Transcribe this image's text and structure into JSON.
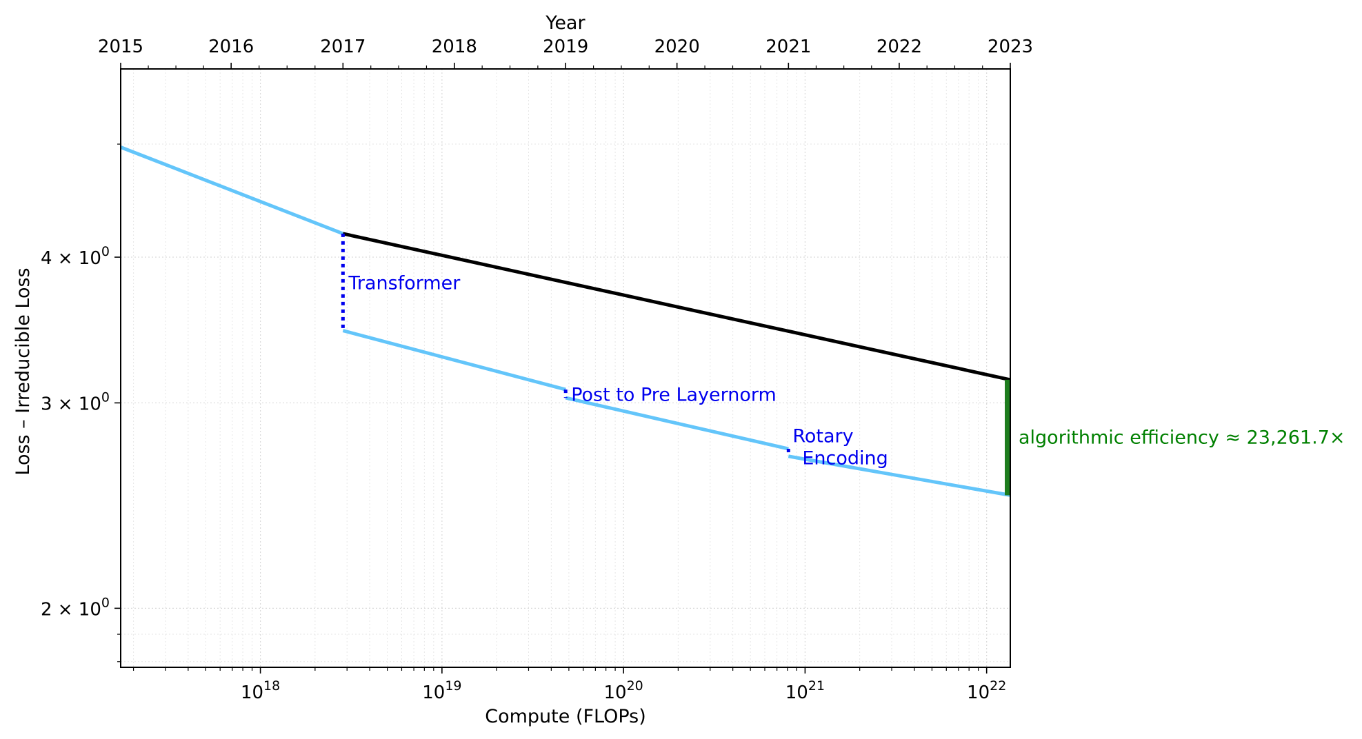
{
  "chart_data": {
    "type": "line",
    "xlabel": "Compute (FLOPs)",
    "ylabel": "Loss – Irreducible Loss",
    "top_axis": {
      "label": "Year",
      "ticks": [
        "2015",
        "2016",
        "2017",
        "2018",
        "2019",
        "2020",
        "2021",
        "2022",
        "2023"
      ],
      "tick_compute": [
        1.7e+17,
        6.9e+17,
        2.85e+18,
        1.17e+19,
        4.8e+19,
        1.97e+20,
        8.1e+20,
        3.3e+21,
        1.35e+22
      ]
    },
    "x_scale": "log",
    "y_scale": "log",
    "xlim": [
      1.7e+17,
      1.35e+22
    ],
    "ylim": [
      1.78,
      5.8
    ],
    "x_ticks": [
      {
        "value": 1e+18,
        "base": "10",
        "exp": "18"
      },
      {
        "value": 1e+19,
        "base": "10",
        "exp": "19"
      },
      {
        "value": 1e+20,
        "base": "10",
        "exp": "20"
      },
      {
        "value": 1e+21,
        "base": "10",
        "exp": "21"
      },
      {
        "value": 1e+22,
        "base": "10",
        "exp": "22"
      }
    ],
    "y_ticks": [
      {
        "value": 2,
        "mant": "2 × 10",
        "exp": "0"
      },
      {
        "value": 3,
        "mant": "3 × 10",
        "exp": "0"
      },
      {
        "value": 4,
        "mant": "4 × 10",
        "exp": "0"
      }
    ],
    "grid": true,
    "series": [
      {
        "color": "#000000",
        "points": [
          [
            2.85e+18,
            4.19
          ],
          [
            1.35e+22,
            3.14
          ]
        ]
      },
      {
        "color": "#63c5fa",
        "points": [
          [
            1.7e+17,
            4.97
          ],
          [
            2.85e+18,
            4.19
          ],
          [
            2.85e+18,
            3.46
          ],
          [
            4.8e+19,
            3.08
          ],
          [
            4.8e+19,
            3.03
          ],
          [
            8.1e+20,
            2.74
          ],
          [
            8.1e+20,
            2.7
          ],
          [
            1.35e+22,
            2.5
          ]
        ]
      }
    ],
    "annotations": [
      {
        "text": "Transformer",
        "x": 2.85e+18,
        "y_top": 4.19,
        "y_bottom": 3.46,
        "label_y": 3.8,
        "color": "#0000ee"
      },
      {
        "text": "Post to Pre Layernorm",
        "x": 4.8e+19,
        "y_top": 3.08,
        "y_bottom": 3.03,
        "label_y": 3.05,
        "color": "#0000ee"
      },
      {
        "text_lines": [
          "Rotary",
          "Encoding"
        ],
        "x": 8.1e+20,
        "y_top": 2.74,
        "y_bottom": 2.7,
        "label_y": 2.81,
        "color": "#0000ee"
      }
    ],
    "efficiency": {
      "text": "algorithmic efficiency ≈ 23,261.7×",
      "x": 1.35e+22,
      "y_top": 3.14,
      "y_bottom": 2.5,
      "color": "#1e7d1e",
      "text_color": "#008000"
    }
  }
}
